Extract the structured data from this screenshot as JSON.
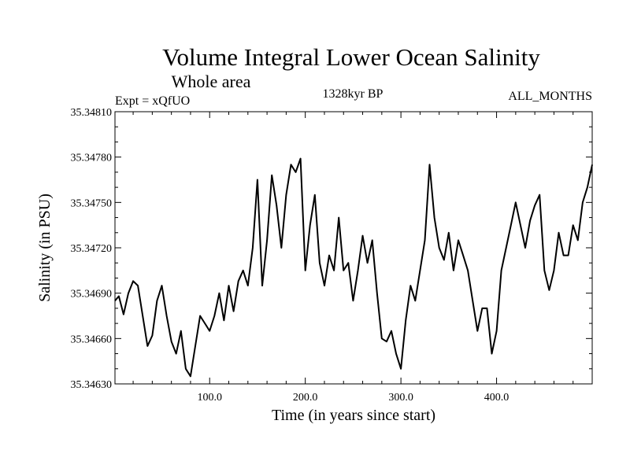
{
  "chart_data": {
    "type": "line",
    "title": "Volume Integral Lower Ocean Salinity",
    "subtitle": "Whole area",
    "expt_label": "Expt = xQfUO",
    "period_label": "1328kyr BP",
    "months_label": "ALL_MONTHS",
    "xlabel": "Time (in years since start)",
    "ylabel": "Salinity (in PSU)",
    "xlim": [
      1,
      500
    ],
    "ylim": [
      35.3463,
      35.3481
    ],
    "xticks": [
      100,
      200,
      300,
      400
    ],
    "xtick_labels": [
      "100.0",
      "200.0",
      "300.0",
      "400.0"
    ],
    "yticks": [
      35.3463,
      35.3466,
      35.3469,
      35.3472,
      35.3475,
      35.3478,
      35.3481
    ],
    "ytick_labels": [
      "35.34630",
      "35.34660",
      "35.34690",
      "35.34720",
      "35.34750",
      "35.34780",
      "35.34810"
    ],
    "series": [
      {
        "name": "Salinity",
        "x": [
          1,
          5,
          10,
          15,
          20,
          25,
          30,
          35,
          40,
          45,
          50,
          55,
          60,
          65,
          70,
          75,
          80,
          85,
          90,
          95,
          100,
          105,
          110,
          115,
          120,
          125,
          130,
          135,
          140,
          145,
          150,
          155,
          160,
          165,
          170,
          175,
          180,
          185,
          190,
          195,
          200,
          205,
          210,
          215,
          220,
          225,
          230,
          235,
          240,
          245,
          250,
          255,
          260,
          265,
          270,
          275,
          280,
          285,
          290,
          295,
          300,
          305,
          310,
          315,
          320,
          325,
          330,
          335,
          340,
          345,
          350,
          355,
          360,
          365,
          370,
          375,
          380,
          385,
          390,
          395,
          400,
          405,
          410,
          415,
          420,
          425,
          430,
          435,
          440,
          445,
          450,
          455,
          460,
          465,
          470,
          475,
          480,
          485,
          490,
          495,
          500
        ],
        "values": [
          35.34685,
          35.34688,
          35.34676,
          35.3469,
          35.34698,
          35.34695,
          35.34675,
          35.34655,
          35.34662,
          35.34685,
          35.34695,
          35.34675,
          35.34658,
          35.3465,
          35.34665,
          35.3464,
          35.34635,
          35.34655,
          35.34675,
          35.3467,
          35.34665,
          35.34675,
          35.3469,
          35.34672,
          35.34695,
          35.34678,
          35.34698,
          35.34705,
          35.34695,
          35.3472,
          35.34765,
          35.34695,
          35.34725,
          35.34768,
          35.34748,
          35.3472,
          35.34755,
          35.34775,
          35.3477,
          35.34779,
          35.34705,
          35.34735,
          35.34755,
          35.3471,
          35.34695,
          35.34715,
          35.34705,
          35.3474,
          35.34705,
          35.3471,
          35.34685,
          35.34705,
          35.34728,
          35.3471,
          35.34725,
          35.3469,
          35.3466,
          35.34658,
          35.34665,
          35.3465,
          35.3464,
          35.34672,
          35.34695,
          35.34685,
          35.34705,
          35.34725,
          35.34775,
          35.3474,
          35.3472,
          35.34712,
          35.3473,
          35.34705,
          35.34725,
          35.34715,
          35.34705,
          35.34685,
          35.34665,
          35.3468,
          35.3468,
          35.3465,
          35.34665,
          35.34705,
          35.3472,
          35.34735,
          35.3475,
          35.34735,
          35.3472,
          35.34738,
          35.34748,
          35.34755,
          35.34705,
          35.34692,
          35.34705,
          35.3473,
          35.34715,
          35.34715,
          35.34735,
          35.34725,
          35.3475,
          35.3476,
          35.34775
        ]
      }
    ]
  }
}
